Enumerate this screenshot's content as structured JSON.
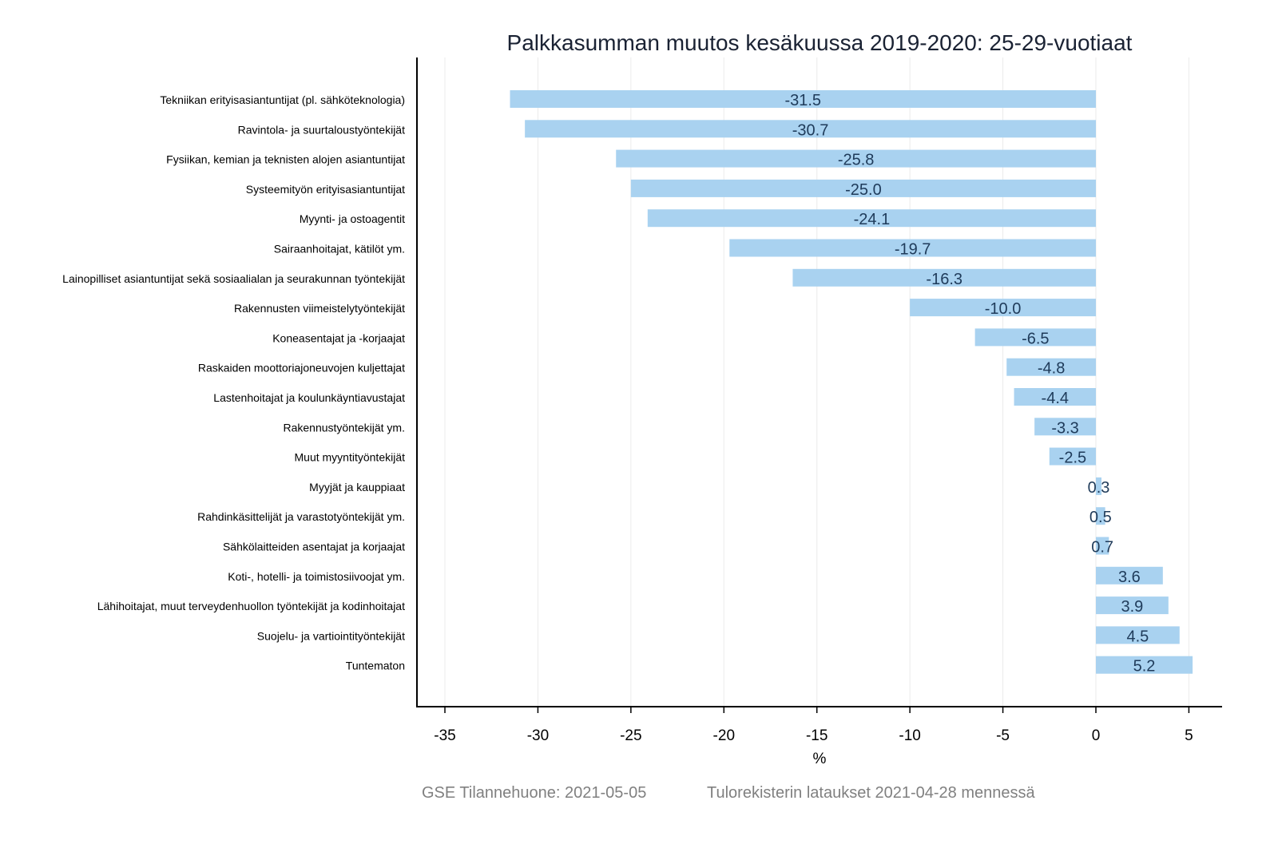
{
  "chart_data": {
    "type": "bar",
    "orientation": "horizontal",
    "title": "Palkkasumman muutos kesäkuussa 2019-2020: 25-29-vuotiaat",
    "xlabel": "%",
    "ylabel": "",
    "xlim": [
      -36.5,
      6.8
    ],
    "xticks": [
      -35,
      -30,
      -25,
      -20,
      -15,
      -10,
      -5,
      0,
      5
    ],
    "grid": "vertical",
    "bar_color": "#a9d2f0",
    "label_color": "#1f3b5a",
    "categories": [
      "Tekniikan erityisasiantuntijat (pl. sähköteknologia)",
      "Ravintola- ja suurtaloustyöntekijät",
      "Fysiikan, kemian ja teknisten alojen asiantuntijat",
      "Systeemityön erityisasiantuntijat",
      "Myynti- ja ostoagentit",
      "Sairaanhoitajat, kätilöt ym.",
      "Lainopilliset asiantuntijat sekä sosiaalialan ja seurakunnan työntekijät",
      "Rakennusten viimeistelytyöntekijät",
      "Koneasentajat ja -korjaajat",
      "Raskaiden moottoriajoneuvojen kuljettajat",
      "Lastenhoitajat ja koulunkäyntiavustajat",
      "Rakennustyöntekijät ym.",
      "Muut myyntityöntekijät",
      "Myyjät ja kauppiaat",
      "Rahdinkäsittelijät ja varastotyöntekijät ym.",
      "Sähkölaitteiden asentajat ja korjaajat",
      "Koti-, hotelli- ja toimistosiivoojat ym.",
      "Lähihoitajat, muut terveydenhuollon työntekijät ja kodinhoitajat",
      "Suojelu- ja vartiointityöntekijät",
      "Tuntematon"
    ],
    "values": [
      -31.5,
      -30.7,
      -25.8,
      -25.0,
      -24.1,
      -19.7,
      -16.3,
      -10.0,
      -6.5,
      -4.8,
      -4.4,
      -3.3,
      -2.5,
      0.3,
      0.5,
      0.7,
      3.6,
      3.9,
      4.5,
      5.2
    ],
    "value_labels": [
      "-31.5",
      "-30.7",
      "-25.8",
      "-25.0",
      "-24.1",
      "-19.7",
      "-16.3",
      "-10.0",
      "-6.5",
      "-4.8",
      "-4.4",
      "-3.3",
      "-2.5",
      "0.3",
      "0.5",
      "0.7",
      "3.6",
      "3.9",
      "4.5",
      "5.2"
    ]
  },
  "caption": {
    "left": "GSE Tilannehuone: 2021-05-05",
    "right": "Tulorekisterin lataukset 2021-04-28 mennessä"
  }
}
